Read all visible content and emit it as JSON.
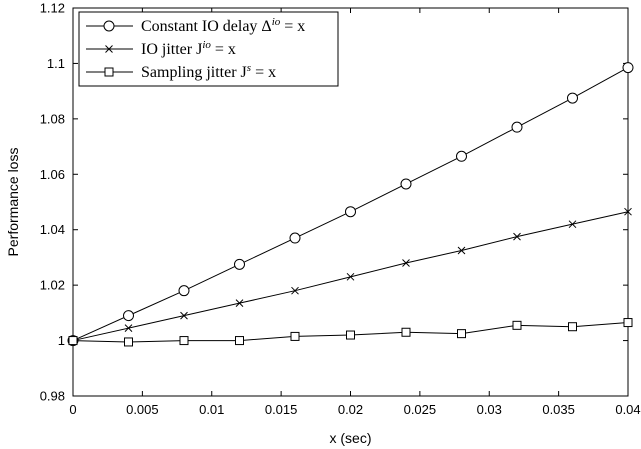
{
  "chart_data": {
    "type": "line",
    "title": "",
    "xlabel": "x (sec)",
    "ylabel": "Performance loss",
    "xlim": [
      0,
      0.04
    ],
    "ylim": [
      0.98,
      1.12
    ],
    "xticks": [
      "0",
      "0.005",
      "0.01",
      "0.015",
      "0.02",
      "0.025",
      "0.03",
      "0.035",
      "0.04"
    ],
    "yticks": [
      "0.98",
      "1",
      "1.02",
      "1.04",
      "1.06",
      "1.08",
      "1.1",
      "1.12"
    ],
    "grid": false,
    "legend_position": "top-left",
    "x": [
      0,
      0.004,
      0.008,
      0.012,
      0.016,
      0.02,
      0.024,
      0.028,
      0.032,
      0.036,
      0.04
    ],
    "series": [
      {
        "name": "Constant IO delay Δ^io = x",
        "name_main": "Constant IO delay Δ",
        "name_sup": "io",
        "name_tail": " = x",
        "marker": "circle",
        "values": [
          1.0,
          1.009,
          1.018,
          1.0275,
          1.037,
          1.0465,
          1.0565,
          1.0665,
          1.077,
          1.0875,
          1.0985
        ]
      },
      {
        "name": "IO jitter J^io = x",
        "name_main": "IO jitter J",
        "name_sup": "io",
        "name_tail": " = x",
        "marker": "x",
        "values": [
          1.0,
          1.0045,
          1.009,
          1.0135,
          1.018,
          1.023,
          1.028,
          1.0325,
          1.0375,
          1.042,
          1.0465
        ]
      },
      {
        "name": "Sampling jitter J^s = x",
        "name_main": "Sampling jitter J",
        "name_sup": "s",
        "name_tail": " = x",
        "marker": "square",
        "values": [
          1.0,
          0.9995,
          1.0,
          1.0,
          1.0015,
          1.002,
          1.003,
          1.0025,
          1.0055,
          1.005,
          1.0065
        ]
      }
    ]
  }
}
